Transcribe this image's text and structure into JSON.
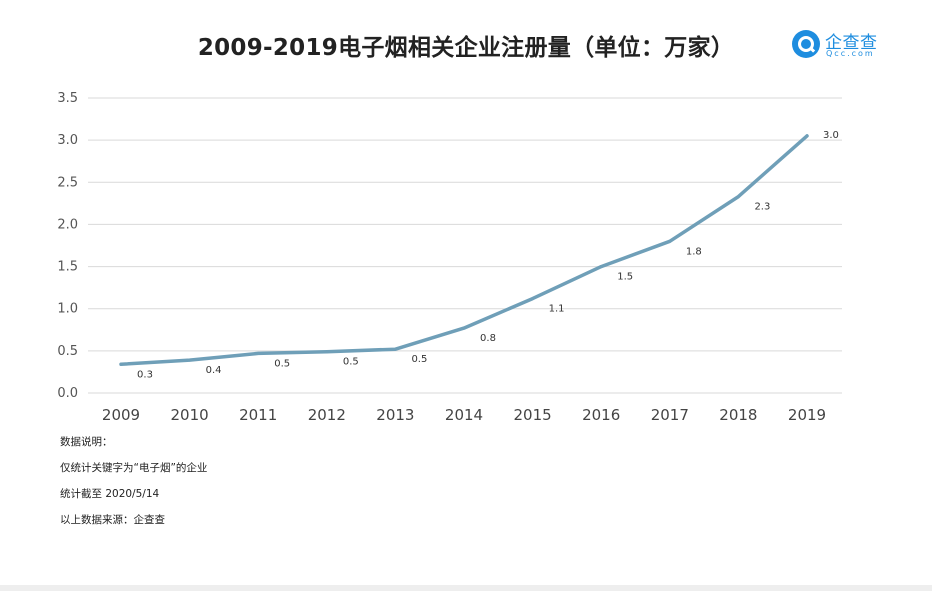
{
  "chart_data": {
    "type": "line",
    "title": "2009-2019电子烟相关企业注册量（单位：万家）",
    "categories": [
      "2009",
      "2010",
      "2011",
      "2012",
      "2013",
      "2014",
      "2015",
      "2016",
      "2017",
      "2018",
      "2019"
    ],
    "series": [
      {
        "values": [
          0.34,
          0.39,
          0.47,
          0.49,
          0.52,
          0.77,
          1.12,
          1.5,
          1.8,
          2.33,
          3.05
        ],
        "labels": [
          "0.3",
          "0.4",
          "0.5",
          "0.5",
          "0.5",
          "0.8",
          "1.1",
          "1.5",
          "1.8",
          "2.3",
          "3.0"
        ],
        "color": "#6f9fb8"
      }
    ],
    "yticks": [
      "0.0",
      "0.5",
      "1.0",
      "1.5",
      "2.0",
      "2.5",
      "3.0",
      "3.5"
    ],
    "ylim": [
      0,
      3.5
    ],
    "grid": true,
    "legend": "none"
  },
  "logo": {
    "name": "企查查",
    "domain": "Qcc.com",
    "color": "#1e8ddf"
  },
  "notes": [
    "数据说明：",
    "仅统计关键字为“电子烟”的企业",
    "统计截至 2020/5/14",
    "以上数据来源：企查查"
  ]
}
